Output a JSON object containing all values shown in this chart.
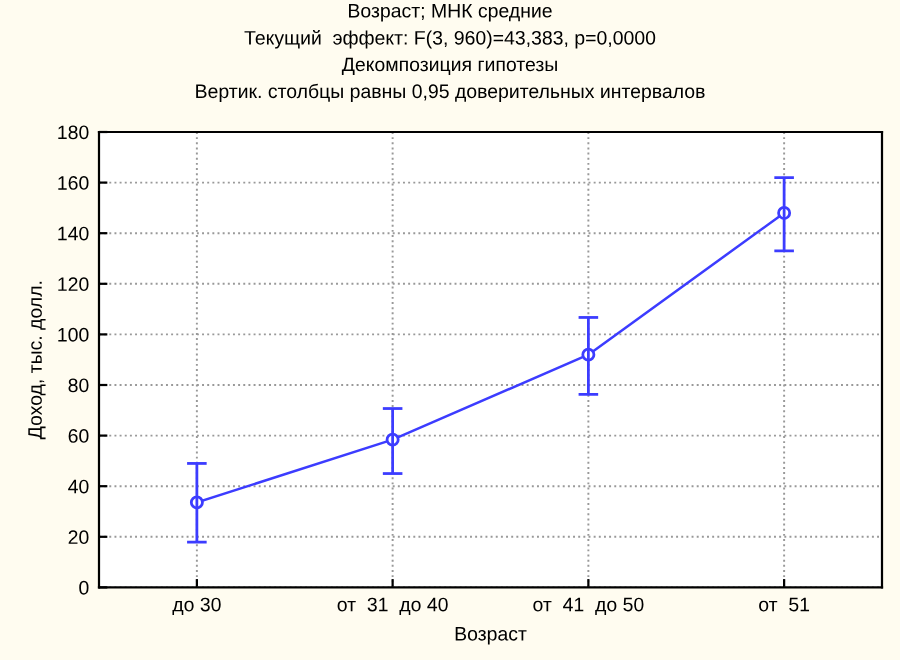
{
  "chart_data": {
    "type": "line",
    "title": "Возраст; МНК средние\nТекущий  эффект: F(3, 960)=43,383, p=0,0000\nДекомпозиция гипотезы\nВертик. столбцы равны 0,95 доверительных интервалов",
    "xlabel": "Возраст",
    "ylabel": "Доход, тыс. долл.",
    "categories": [
      "до 30",
      "от  31  до 40",
      "от  41  до 50",
      "от  51"
    ],
    "series": [
      {
        "color": "#3c3cff",
        "values": [
          33.6,
          58.4,
          92,
          148
        ],
        "errors": [
          [
            17.9,
            49
          ],
          [
            45,
            70.7
          ],
          [
            76.3,
            106.7
          ],
          [
            133,
            162
          ]
        ]
      }
    ],
    "ylim": [
      0,
      180
    ],
    "yticks": [
      0,
      20,
      40,
      60,
      80,
      100,
      120,
      140,
      160,
      180
    ],
    "grid": true,
    "marker": "circle",
    "line_style": "solid"
  }
}
